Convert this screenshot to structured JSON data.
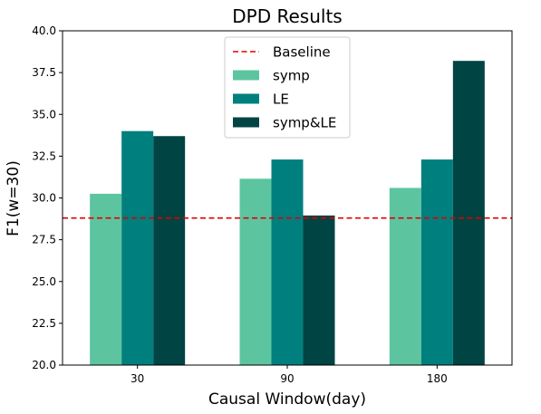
{
  "chart_data": {
    "type": "bar",
    "title": "DPD Results",
    "xlabel": "Causal Window(day)",
    "ylabel": "F1(w=30)",
    "categories": [
      "30",
      "90",
      "180"
    ],
    "ylim": [
      20.0,
      40.0
    ],
    "yticks": [
      20.0,
      22.5,
      25.0,
      27.5,
      30.0,
      32.5,
      35.0,
      37.5,
      40.0
    ],
    "ytick_labels": [
      "20.0",
      "22.5",
      "25.0",
      "27.5",
      "30.0",
      "32.5",
      "35.0",
      "37.5",
      "40.0"
    ],
    "series": [
      {
        "name": "symp",
        "color": "#5cc5a0",
        "values": [
          30.25,
          31.15,
          30.6
        ]
      },
      {
        "name": "LE",
        "color": "#007f7f",
        "values": [
          34.0,
          32.3,
          32.3
        ]
      },
      {
        "name": "symp&LE",
        "color": "#004443",
        "values": [
          33.7,
          28.95,
          38.2
        ]
      }
    ],
    "baseline": {
      "name": "Baseline",
      "value": 28.8,
      "color": "#e00000",
      "style": "dashed"
    },
    "grid": false,
    "legend_position": "top-center"
  }
}
